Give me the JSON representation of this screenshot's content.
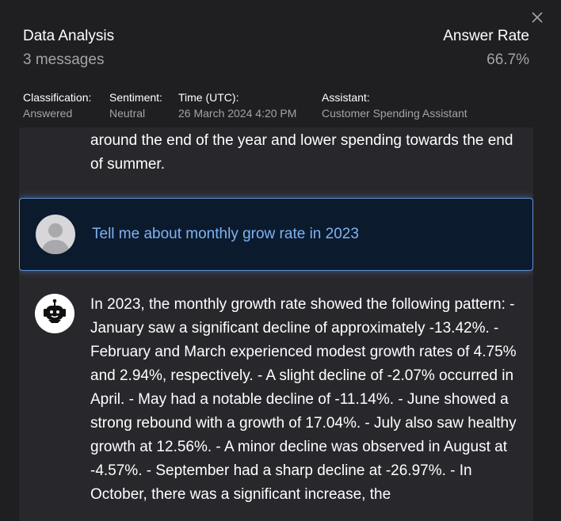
{
  "header": {
    "title": "Data Analysis",
    "subtitle": "3 messages",
    "rate_label": "Answer Rate",
    "rate_value": "66.7%"
  },
  "meta": {
    "classification_label": "Classification:",
    "classification_value": "Answered",
    "sentiment_label": "Sentiment:",
    "sentiment_value": "Neutral",
    "time_label": "Time (UTC):",
    "time_value": "26 March 2024 4:20 PM",
    "assistant_label": "Assistant:",
    "assistant_value": "Customer Spending Assistant"
  },
  "messages": {
    "previous_text": "around the end of the year and lower spending towards the end of summer.",
    "user_text": "Tell me about monthly grow rate in 2023",
    "assistant_text": "In 2023, the monthly growth rate showed the following pattern: - January saw a significant decline of approximately -13.42%. - February and March experienced modest growth rates of 4.75% and 2.94%, respectively. - A slight decline of -2.07% occurred in April. - May had a notable decline of -11.14%. - June showed a strong rebound with a growth of 17.04%. - July also saw healthy growth at 12.56%. - A minor decline was observed in August at -4.57%. - September had a sharp decline at -26.97%. - In October, there was a significant increase, the"
  },
  "icons": {
    "close": "close-icon",
    "user_avatar": "user-avatar-icon",
    "bot_avatar": "robot-icon"
  }
}
